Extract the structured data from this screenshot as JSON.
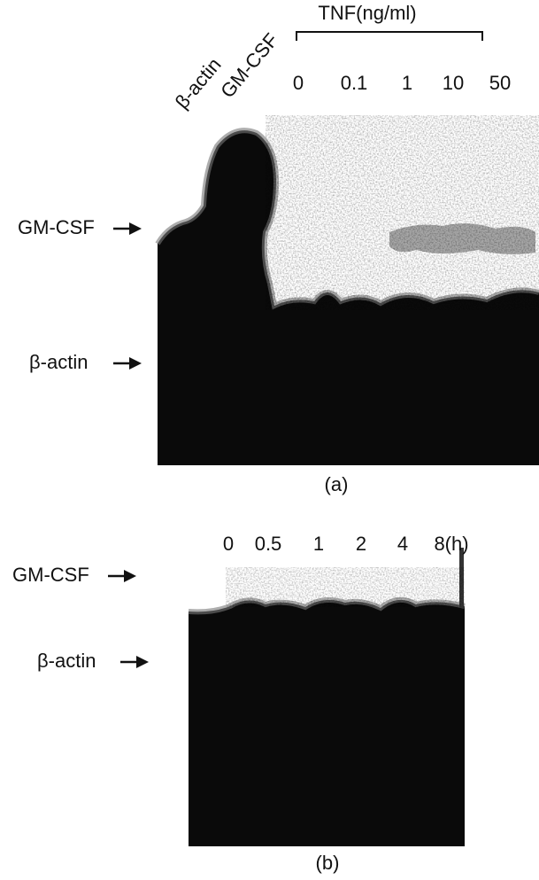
{
  "panel_a": {
    "lane_labels": [
      "β-actin",
      "GM-CSF"
    ],
    "treatment": "TNF(ng/ml)",
    "doses": [
      "0",
      "0.1",
      "1",
      "10",
      "50"
    ],
    "row_labels": [
      "GM-CSF",
      "β-actin"
    ],
    "caption": "(a)"
  },
  "panel_b": {
    "times": [
      "0",
      "0.5",
      "1",
      "2",
      "4",
      "8(h)"
    ],
    "row_labels": [
      "GM-CSF",
      "β-actin"
    ],
    "caption": "(b)"
  }
}
